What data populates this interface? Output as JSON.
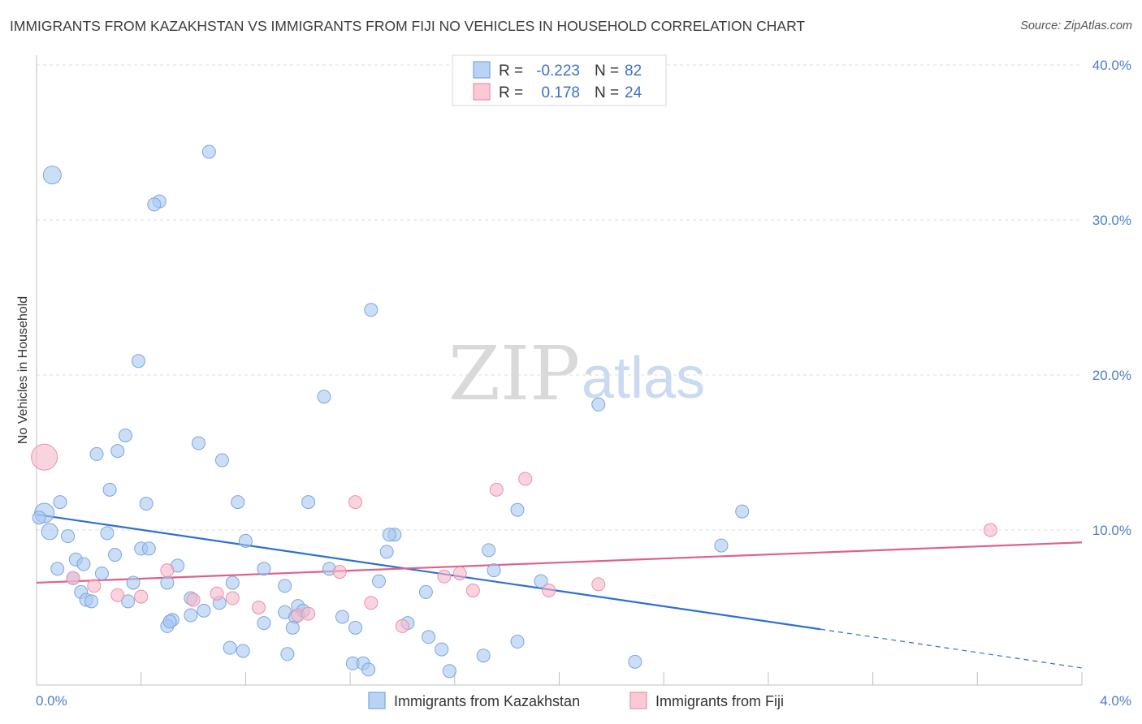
{
  "title": "IMMIGRANTS FROM KAZAKHSTAN VS IMMIGRANTS FROM FIJI NO VEHICLES IN HOUSEHOLD CORRELATION CHART",
  "source": "Source: ZipAtlas.com",
  "watermark": {
    "zip": "ZIP",
    "atlas": "atlas"
  },
  "legend_top": {
    "rows": [
      {
        "r_label": "R =",
        "r_value": "-0.223",
        "n_label": "N =",
        "n_value": "82"
      },
      {
        "r_label": "R =",
        "r_value": "0.178",
        "n_label": "N =",
        "n_value": "24"
      }
    ]
  },
  "chart_data": {
    "type": "scatter",
    "title": "IMMIGRANTS FROM KAZAKHSTAN VS IMMIGRANTS FROM FIJI NO VEHICLES IN HOUSEHOLD CORRELATION CHART",
    "xlabel": "",
    "ylabel": "No Vehicles in Household",
    "xlim": [
      0,
      4
    ],
    "ylim": [
      0,
      40
    ],
    "x_tick_labels": [
      "0.0%",
      "4.0%"
    ],
    "y_ticks": [
      10,
      20,
      30,
      40
    ],
    "y_tick_labels": [
      "10.0%",
      "20.0%",
      "30.0%",
      "40.0%"
    ],
    "grid": true,
    "legend_placement": "bottom-center",
    "series": [
      {
        "name": "Immigrants from Kazakhstan",
        "color": "#a9c8f0",
        "edge_color": "#7aa6e0",
        "line_color": "#2f6fd0",
        "r": -0.223,
        "n": 82,
        "trend": {
          "x0": 0.0,
          "y0": 11.0,
          "x1": 3.0,
          "y1": 3.6,
          "x_dash_end": 4.0,
          "y_dash_end": 1.1
        },
        "points": [
          [
            0.06,
            32.9,
            11
          ],
          [
            0.66,
            34.4,
            8
          ],
          [
            0.47,
            31.2,
            8
          ],
          [
            0.45,
            31.0,
            8
          ],
          [
            1.28,
            24.2,
            8
          ],
          [
            0.39,
            20.9,
            8
          ],
          [
            1.1,
            18.6,
            8
          ],
          [
            2.15,
            18.1,
            8
          ],
          [
            0.34,
            16.1,
            8
          ],
          [
            0.31,
            15.1,
            8
          ],
          [
            0.62,
            15.6,
            8
          ],
          [
            0.23,
            14.9,
            8
          ],
          [
            0.71,
            14.5,
            8
          ],
          [
            0.03,
            11.1,
            12
          ],
          [
            0.01,
            10.8,
            8
          ],
          [
            0.05,
            9.9,
            10
          ],
          [
            0.09,
            11.8,
            8
          ],
          [
            0.28,
            12.6,
            8
          ],
          [
            0.42,
            11.7,
            8
          ],
          [
            0.77,
            11.8,
            8
          ],
          [
            1.04,
            11.8,
            8
          ],
          [
            1.84,
            11.3,
            8
          ],
          [
            2.7,
            11.2,
            8
          ],
          [
            0.12,
            9.6,
            8
          ],
          [
            0.27,
            9.8,
            8
          ],
          [
            0.4,
            8.8,
            8
          ],
          [
            0.43,
            8.8,
            8
          ],
          [
            0.8,
            9.3,
            8
          ],
          [
            1.37,
            9.7,
            8
          ],
          [
            1.35,
            9.7,
            8
          ],
          [
            1.34,
            8.6,
            8
          ],
          [
            1.73,
            8.7,
            8
          ],
          [
            2.62,
            9.0,
            8
          ],
          [
            0.15,
            8.1,
            8
          ],
          [
            0.3,
            8.4,
            8
          ],
          [
            0.08,
            7.5,
            8
          ],
          [
            0.18,
            7.8,
            8
          ],
          [
            0.54,
            7.7,
            8
          ],
          [
            0.87,
            7.5,
            8
          ],
          [
            1.12,
            7.5,
            8
          ],
          [
            1.75,
            7.4,
            8
          ],
          [
            0.25,
            7.2,
            8
          ],
          [
            0.14,
            6.9,
            8
          ],
          [
            0.37,
            6.6,
            8
          ],
          [
            0.5,
            6.6,
            8
          ],
          [
            0.75,
            6.6,
            8
          ],
          [
            0.95,
            6.4,
            8
          ],
          [
            1.31,
            6.7,
            8
          ],
          [
            1.49,
            6.0,
            8
          ],
          [
            1.93,
            6.7,
            8
          ],
          [
            0.17,
            6.0,
            8
          ],
          [
            0.19,
            5.5,
            8
          ],
          [
            0.21,
            5.4,
            8
          ],
          [
            0.35,
            5.4,
            8
          ],
          [
            0.59,
            5.6,
            8
          ],
          [
            0.7,
            5.3,
            8
          ],
          [
            0.64,
            4.8,
            8
          ],
          [
            0.59,
            4.5,
            8
          ],
          [
            0.52,
            4.2,
            8
          ],
          [
            0.5,
            3.8,
            8
          ],
          [
            0.95,
            4.7,
            8
          ],
          [
            1.0,
            5.1,
            8
          ],
          [
            1.02,
            4.8,
            8
          ],
          [
            0.99,
            4.4,
            8
          ],
          [
            0.87,
            4.0,
            8
          ],
          [
            1.17,
            4.4,
            8
          ],
          [
            0.98,
            3.7,
            8
          ],
          [
            1.22,
            3.7,
            8
          ],
          [
            1.42,
            4.0,
            8
          ],
          [
            1.5,
            3.1,
            8
          ],
          [
            1.84,
            2.8,
            8
          ],
          [
            0.74,
            2.4,
            8
          ],
          [
            0.79,
            2.2,
            8
          ],
          [
            0.96,
            2.0,
            8
          ],
          [
            1.21,
            1.4,
            8
          ],
          [
            1.25,
            1.4,
            8
          ],
          [
            1.27,
            1.0,
            8
          ],
          [
            1.55,
            2.3,
            8
          ],
          [
            1.71,
            1.9,
            8
          ],
          [
            1.58,
            0.9,
            8
          ],
          [
            2.29,
            1.5,
            8
          ],
          [
            0.51,
            4.1,
            8
          ]
        ]
      },
      {
        "name": "Immigrants from Fiji",
        "color": "#f5b8c8",
        "edge_color": "#ec8fab",
        "line_color": "#e0608a",
        "r": 0.178,
        "n": 24,
        "trend": {
          "x0": 0.0,
          "y0": 6.6,
          "x1": 4.0,
          "y1": 9.2
        },
        "points": [
          [
            0.03,
            14.7,
            16
          ],
          [
            1.22,
            11.8,
            8
          ],
          [
            1.76,
            12.6,
            8
          ],
          [
            1.87,
            13.3,
            8
          ],
          [
            3.65,
            10.0,
            8
          ],
          [
            0.5,
            7.4,
            8
          ],
          [
            1.16,
            7.3,
            8
          ],
          [
            1.56,
            7.0,
            8
          ],
          [
            1.62,
            7.2,
            8
          ],
          [
            2.15,
            6.5,
            8
          ],
          [
            0.14,
            6.9,
            8
          ],
          [
            0.22,
            6.4,
            8
          ],
          [
            0.31,
            5.8,
            8
          ],
          [
            0.4,
            5.7,
            8
          ],
          [
            0.6,
            5.5,
            8
          ],
          [
            0.69,
            5.9,
            8
          ],
          [
            0.75,
            5.6,
            8
          ],
          [
            1.67,
            6.1,
            8
          ],
          [
            1.96,
            6.1,
            8
          ],
          [
            0.85,
            5.0,
            8
          ],
          [
            1.0,
            4.5,
            8
          ],
          [
            1.04,
            4.6,
            8
          ],
          [
            1.28,
            5.3,
            8
          ],
          [
            1.4,
            3.8,
            8
          ]
        ]
      }
    ]
  }
}
